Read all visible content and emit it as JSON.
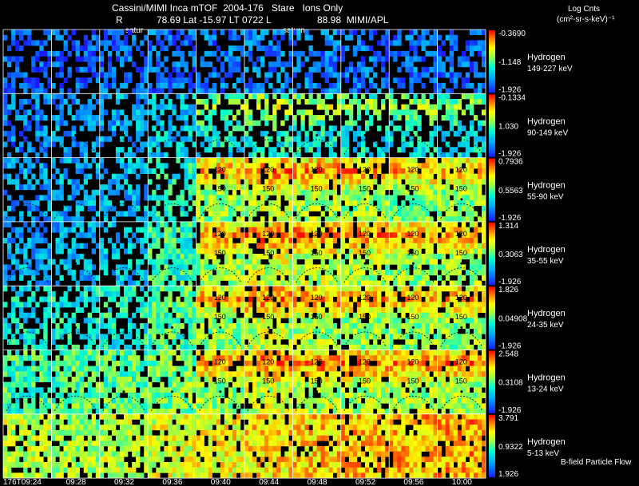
{
  "header": {
    "title": "Cassini/MIMI Inca mTOF  2004-176   Stare   Ions Only",
    "r_label": "R",
    "info": "78.69 Lat -15.97 LT 0722 L",
    "l_value": "88.98  MIMI/APL",
    "saturn_left": "satur",
    "saturn_mid": "saturn",
    "units_line1": "Log Cnts",
    "units_line2": "(cm²-sr-s-keV)⁻¹"
  },
  "footer": {
    "bfield_label": "B-field Particle Flow",
    "time_labels": [
      "176T09:24",
      "09:28",
      "09:32",
      "09:36",
      "09:40",
      "09:44",
      "09:48",
      "09:52",
      "09:56",
      "10:00"
    ]
  },
  "chart_data": {
    "type": "heatmap",
    "title": "Cassini/MIMI Inca mTOF  2004-176   Stare   Ions Only",
    "xlabel": "",
    "ylabel": "",
    "x": [
      "176T09:24",
      "09:28",
      "09:32",
      "09:36",
      "09:40",
      "09:44",
      "09:48",
      "09:52",
      "09:56",
      "10:00"
    ],
    "colorbar_label": "Log Cnts (cm²-sr-s-keV)⁻¹",
    "contour_labels": [
      "120",
      "150"
    ],
    "rows": [
      {
        "species": "Hydrogen",
        "energy": "149-227 keV",
        "cmax": "-0.3690",
        "cmid": "-1.148",
        "cmin": "-1.926",
        "intensity": [
          0.1,
          0.12,
          0.12,
          0.14,
          0.16,
          0.18,
          0.16,
          0.14,
          0.14,
          0.12
        ]
      },
      {
        "species": "Hydrogen",
        "energy": "90-149 keV",
        "cmax": "-0.1334",
        "cmid": "1.030",
        "cmin": "-1.926",
        "intensity": [
          0.16,
          0.2,
          0.24,
          0.3,
          0.36,
          0.4,
          0.38,
          0.36,
          0.36,
          0.34
        ]
      },
      {
        "species": "Hydrogen",
        "energy": "55-90 keV",
        "cmax": "0.7936",
        "cmid": "0.5563",
        "cmin": "-1.926",
        "intensity": [
          0.22,
          0.24,
          0.26,
          0.4,
          0.56,
          0.62,
          0.6,
          0.58,
          0.56,
          0.56
        ]
      },
      {
        "species": "Hydrogen",
        "energy": "35-55 keV",
        "cmax": "1.314",
        "cmid": "0.3063",
        "cmin": "-1.926",
        "intensity": [
          0.24,
          0.26,
          0.3,
          0.44,
          0.58,
          0.64,
          0.62,
          0.6,
          0.58,
          0.58
        ]
      },
      {
        "species": "Hydrogen",
        "energy": "24-35 keV",
        "cmax": "1.826",
        "cmid": "0.04908",
        "cmin": "-1.926",
        "intensity": [
          0.36,
          0.38,
          0.4,
          0.48,
          0.56,
          0.62,
          0.6,
          0.58,
          0.56,
          0.56
        ]
      },
      {
        "species": "Hydrogen",
        "energy": "13-24 keV",
        "cmax": "2.548",
        "cmid": "0.3108",
        "cmin": "-1.926",
        "intensity": [
          0.46,
          0.48,
          0.5,
          0.54,
          0.58,
          0.64,
          0.62,
          0.6,
          0.6,
          0.6
        ]
      },
      {
        "species": "Hydrogen",
        "energy": "5-13 keV",
        "cmax": "3.791",
        "cmid": "0.9322",
        "cmin": "1.926",
        "intensity": [
          0.62,
          0.6,
          0.62,
          0.66,
          0.7,
          0.74,
          0.76,
          0.78,
          0.8,
          0.82
        ]
      }
    ]
  }
}
